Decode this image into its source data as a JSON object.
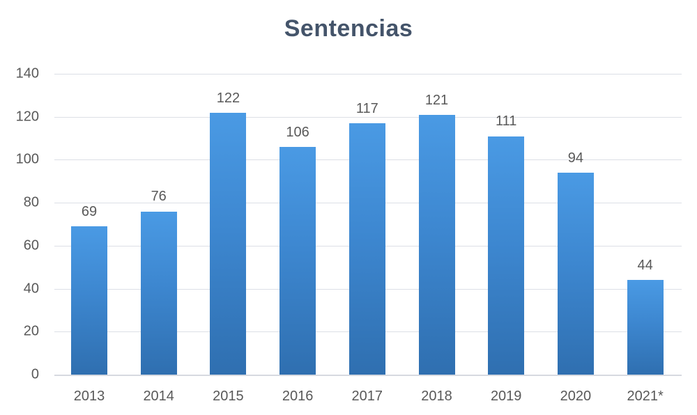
{
  "chart_data": {
    "type": "bar",
    "title": "Sentencias",
    "xlabel": "",
    "ylabel": "",
    "categories": [
      "2013",
      "2014",
      "2015",
      "2016",
      "2017",
      "2018",
      "2019",
      "2020",
      "2021*"
    ],
    "values": [
      69,
      76,
      122,
      106,
      117,
      121,
      111,
      94,
      44
    ],
    "data_labels": [
      "69",
      "76",
      "122",
      "106",
      "117",
      "121",
      "111",
      "94",
      "44"
    ],
    "ylim": [
      0,
      140
    ],
    "yticks": [
      "0",
      "20",
      "40",
      "60",
      "80",
      "100",
      "120",
      "140"
    ],
    "grid": true,
    "legend": null,
    "bar_color": "#3d87d0"
  }
}
